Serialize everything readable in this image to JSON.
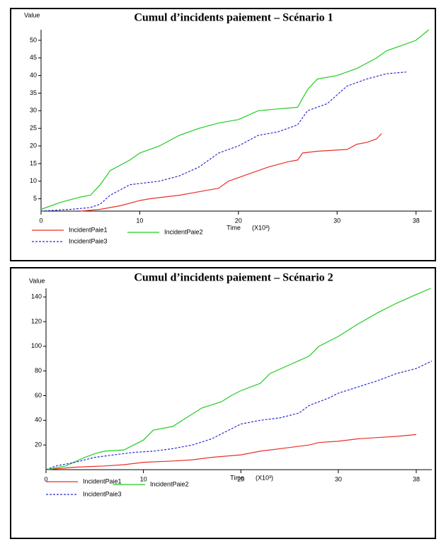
{
  "chart_data": [
    {
      "type": "line",
      "title": "Cumul d’incidents paiement – Scénario 1",
      "y_label": "Value",
      "x_label": "Time",
      "x_unit": "(X10³)",
      "xlim": [
        0,
        39.6
      ],
      "xticks": [
        0,
        10,
        20,
        30,
        38
      ],
      "ylim": [
        1.5,
        53
      ],
      "yticks": [
        5,
        10,
        15,
        20,
        25,
        30,
        35,
        40,
        45,
        50
      ],
      "legend": "bottom",
      "series": [
        {
          "name": "IncidentPaie1",
          "color": "#e8302a",
          "style": "solid",
          "x": [
            4,
            6,
            8,
            10,
            11,
            14,
            16,
            18,
            19,
            21,
            23,
            25,
            26,
            26.5,
            28,
            31,
            32,
            33,
            34,
            34.5
          ],
          "values": [
            1.5,
            2,
            3,
            4.5,
            5,
            6,
            7,
            8,
            10,
            12,
            14,
            15.5,
            16,
            18,
            18.5,
            19,
            20.5,
            21,
            22,
            23.5
          ]
        },
        {
          "name": "IncidentPaie2",
          "color": "#22cc22",
          "style": "solid",
          "x": [
            0,
            2,
            4,
            5,
            6,
            7,
            9,
            10,
            12,
            14,
            16,
            18,
            20,
            22,
            24,
            26,
            27,
            28,
            30,
            32,
            34,
            35,
            37,
            38,
            39.3
          ],
          "values": [
            2,
            4,
            5.5,
            6,
            9,
            13,
            16,
            18,
            20,
            23,
            25,
            26.5,
            27.5,
            30,
            30.5,
            31,
            36,
            39,
            40,
            42,
            45,
            47,
            49,
            50,
            53
          ]
        },
        {
          "name": "IncidentPaie3",
          "color": "#2a2ad0",
          "style": "dashed",
          "x": [
            0,
            3,
            5,
            6,
            7,
            9,
            12,
            14,
            16,
            18,
            20,
            22,
            24,
            26,
            27,
            29,
            31,
            33,
            35,
            37
          ],
          "values": [
            1.5,
            2,
            2.5,
            3.5,
            6,
            9,
            10,
            11.5,
            14,
            18,
            20,
            23,
            24,
            26,
            30,
            32,
            37,
            39,
            40.5,
            41
          ]
        }
      ]
    },
    {
      "type": "line",
      "title": "Cumul d’incidents paiement – Scénario 2",
      "y_label": "Value",
      "x_label": "Time",
      "x_unit": "(X10³)",
      "xlim": [
        0,
        39.6
      ],
      "xticks": [
        0,
        10,
        20,
        30,
        38
      ],
      "ylim": [
        0,
        147
      ],
      "yticks": [
        20,
        40,
        60,
        80,
        100,
        120,
        140
      ],
      "legend": "bottom",
      "series": [
        {
          "name": "IncidentPaie1",
          "color": "#e8302a",
          "style": "solid",
          "x": [
            0,
            3,
            6,
            8,
            10,
            13,
            15,
            17,
            20,
            22,
            25,
            27,
            28,
            30,
            32,
            34,
            36,
            38
          ],
          "values": [
            0,
            2,
            3,
            4,
            6,
            7,
            8,
            10,
            12,
            15,
            18,
            20,
            22,
            23,
            25,
            26,
            27,
            28.5
          ]
        },
        {
          "name": "IncidentPaie2",
          "color": "#22cc22",
          "style": "solid",
          "x": [
            0,
            2,
            4,
            5,
            6,
            8,
            9,
            10,
            11,
            13,
            14,
            16,
            18,
            19,
            20,
            22,
            23,
            25,
            27,
            28,
            30,
            32,
            34,
            36,
            38,
            39.5
          ],
          "values": [
            0,
            3,
            10,
            13,
            15,
            16,
            20,
            24,
            32,
            35,
            40,
            50,
            55,
            60,
            64,
            70,
            78,
            85,
            92,
            100,
            108,
            118,
            127,
            135,
            142,
            147
          ]
        },
        {
          "name": "IncidentPaie3",
          "color": "#2a2ad0",
          "style": "dashed",
          "x": [
            0,
            1,
            3,
            5,
            7,
            9,
            11,
            13,
            15,
            17,
            19,
            20,
            22,
            24,
            26,
            27,
            29,
            30,
            32,
            34,
            36,
            38,
            39.6
          ],
          "values": [
            0,
            3,
            6,
            10,
            12,
            14,
            15,
            17,
            20,
            25,
            33,
            37,
            40,
            42,
            46,
            52,
            58,
            62,
            67,
            72,
            78,
            82,
            88
          ]
        }
      ]
    }
  ]
}
